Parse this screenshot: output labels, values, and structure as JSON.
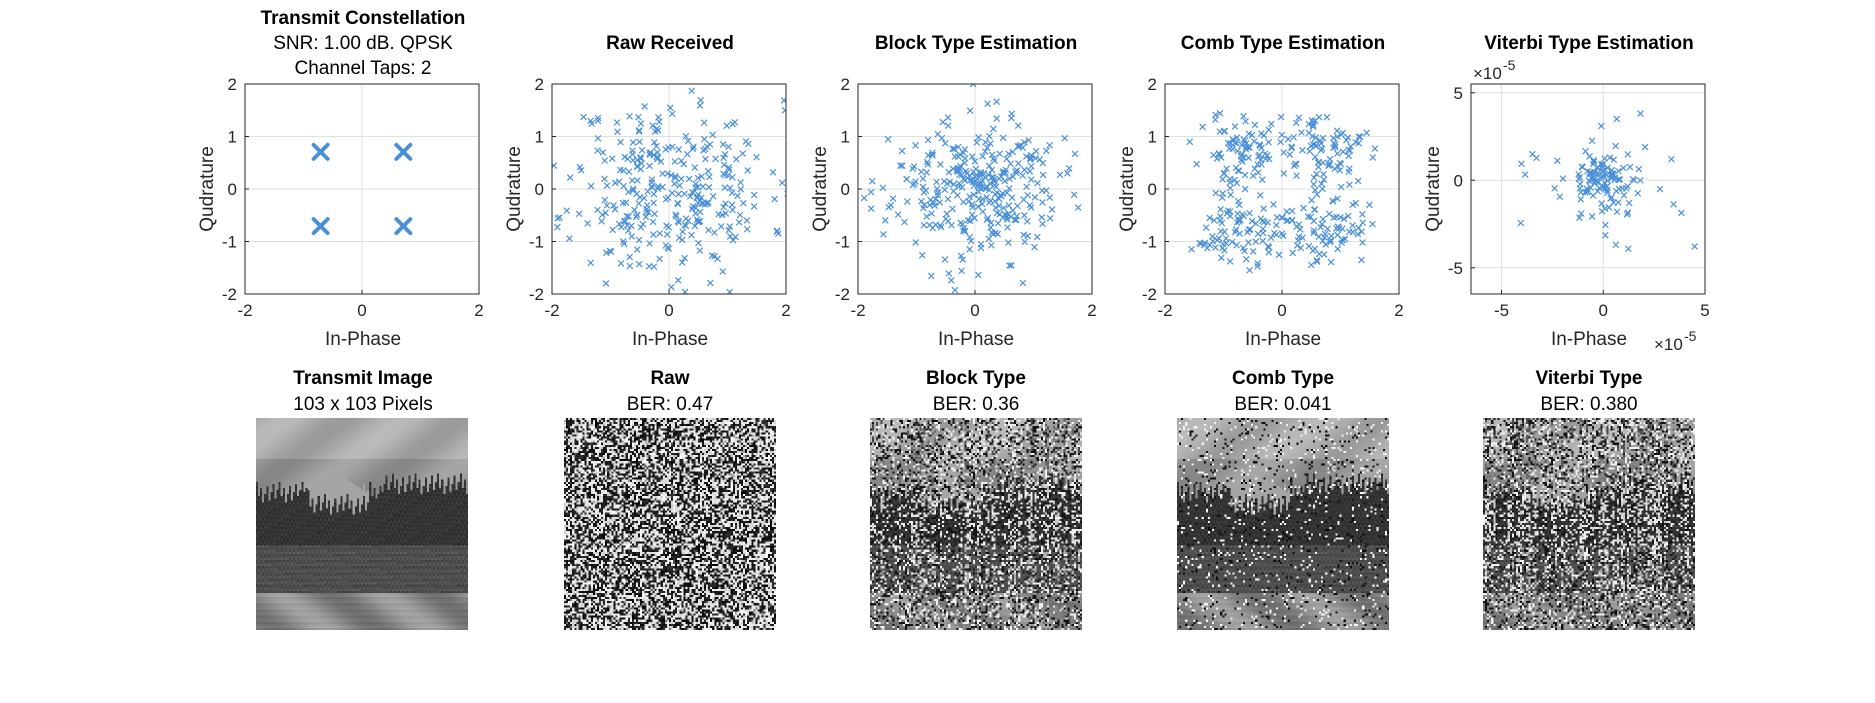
{
  "figure": {
    "scatter_titles": [
      "Transmit Constellation",
      "Raw Received",
      "Block Type Estimation",
      "Comb Type Estimation",
      "Viterbi Type Estimation"
    ],
    "transmit_subtitle_1": "SNR: 1.00 dB. QPSK",
    "transmit_subtitle_2": "Channel Taps: 2",
    "image_titles": [
      "Transmit Image",
      "Raw",
      "Block Type",
      "Comb Type",
      "Viterbi Type"
    ],
    "image_subtitles": [
      "103 x 103 Pixels",
      "BER: 0.47",
      "BER: 0.36",
      "BER: 0.041",
      "BER: 0.380"
    ]
  },
  "colors": {
    "marker": "#4a90d9",
    "grid": "#dfdfdf",
    "axis": "#262626"
  },
  "chart_data": [
    {
      "type": "scatter",
      "title": "Transmit Constellation",
      "subtitle": [
        "SNR: 1.00 dB. QPSK",
        "Channel Taps: 2"
      ],
      "xlabel": "In-Phase",
      "ylabel": "Qudrature",
      "xlim": [
        -2,
        2
      ],
      "ylim": [
        -2,
        2
      ],
      "xticks": [
        "-2",
        "0",
        "2"
      ],
      "yticks": [
        "-2",
        "-1",
        "0",
        "1",
        "2"
      ],
      "xtick_values": [
        -2,
        0,
        2
      ],
      "ytick_values": [
        -2,
        -1,
        0,
        1,
        2
      ],
      "grid": true,
      "marker": "x-large",
      "points": [
        [
          -0.707,
          0.707
        ],
        [
          0.707,
          0.707
        ],
        [
          -0.707,
          -0.707
        ],
        [
          0.707,
          -0.707
        ]
      ]
    },
    {
      "type": "scatter",
      "title": "Raw Received",
      "xlabel": "In-Phase",
      "ylabel": "Qudrature",
      "xlim": [
        -2,
        2
      ],
      "ylim": [
        -2,
        2
      ],
      "xticks": [
        "-2",
        "0",
        "2"
      ],
      "yticks": [
        "-2",
        "-1",
        "0",
        "1",
        "2"
      ],
      "xtick_values": [
        -2,
        0,
        2
      ],
      "ytick_values": [
        -2,
        -1,
        0,
        1,
        2
      ],
      "grid": true,
      "marker": "x-small",
      "cloud": {
        "pattern": "disc",
        "count": 320,
        "center": [
          0,
          0
        ],
        "spread": [
          0.85,
          0.85
        ],
        "seed": 11
      }
    },
    {
      "type": "scatter",
      "title": "Block Type Estimation",
      "xlabel": "In-Phase",
      "ylabel": "",
      "xlim": [
        -2,
        2
      ],
      "ylim": [
        -2,
        2
      ],
      "xticks": [
        "-2",
        "0",
        "2"
      ],
      "yticks": [
        "-2",
        "-1",
        "0",
        "1",
        "2"
      ],
      "xtick_values": [
        -2,
        0,
        2
      ],
      "ytick_values": [
        -2,
        -1,
        0,
        1,
        2
      ],
      "grid": true,
      "marker": "x-small",
      "cloud": {
        "pattern": "gaussian",
        "count": 320,
        "center": [
          0,
          0
        ],
        "spread": [
          0.7,
          0.65
        ],
        "seed": 23
      }
    },
    {
      "type": "scatter",
      "title": "Comb Type Estimation",
      "xlabel": "In-Phase",
      "ylabel": "Qudrature",
      "xlim": [
        -2,
        2
      ],
      "ylim": [
        -2,
        2
      ],
      "xticks": [
        "-2",
        "0",
        "2"
      ],
      "yticks": [
        "-2",
        "-1",
        "0",
        "1",
        "2"
      ],
      "xtick_values": [
        -2,
        0,
        2
      ],
      "ytick_values": [
        -2,
        -1,
        0,
        1,
        2
      ],
      "grid": true,
      "marker": "x-small",
      "cloud": {
        "pattern": "qpsk",
        "count": 340,
        "centers": [
          [
            -0.75,
            0.75
          ],
          [
            0.75,
            0.75
          ],
          [
            -0.75,
            -0.75
          ],
          [
            0.75,
            -0.75
          ]
        ],
        "spread": [
          0.35,
          0.35
        ],
        "seed": 37
      }
    },
    {
      "type": "scatter",
      "title": "Viterbi Type Estimation",
      "xlabel": "In-Phase",
      "ylabel": "Qudrature",
      "xlim": [
        -6.5,
        5
      ],
      "ylim": [
        -6.5,
        5.5
      ],
      "axis_exponent": "-5",
      "xticks": [
        "-5",
        "0",
        "5"
      ],
      "yticks": [
        "-5",
        "0",
        "5"
      ],
      "xtick_values": [
        -5,
        0,
        5
      ],
      "ytick_values": [
        -5,
        0,
        5
      ],
      "grid": true,
      "marker": "x-small",
      "cloud": {
        "pattern": "gaussian",
        "count": 110,
        "center": [
          0,
          0
        ],
        "spread": [
          0.9,
          0.9
        ],
        "outliers": 22,
        "seed": 53
      }
    }
  ],
  "images": [
    {
      "title": "Transmit Image",
      "subtitle": "103 x 103 Pixels",
      "kind": "landscape"
    },
    {
      "title": "Raw",
      "subtitle": "BER: 0.47",
      "kind": "noise",
      "noise": 0.95
    },
    {
      "title": "Block Type",
      "subtitle": "BER: 0.36",
      "kind": "streaks",
      "noise": 0.6
    },
    {
      "title": "Comb Type",
      "subtitle": "BER: 0.041",
      "kind": "landscape-noisy",
      "noise": 0.12
    },
    {
      "title": "Viterbi Type",
      "subtitle": "BER: 0.380",
      "kind": "streaks",
      "noise": 0.65
    }
  ]
}
